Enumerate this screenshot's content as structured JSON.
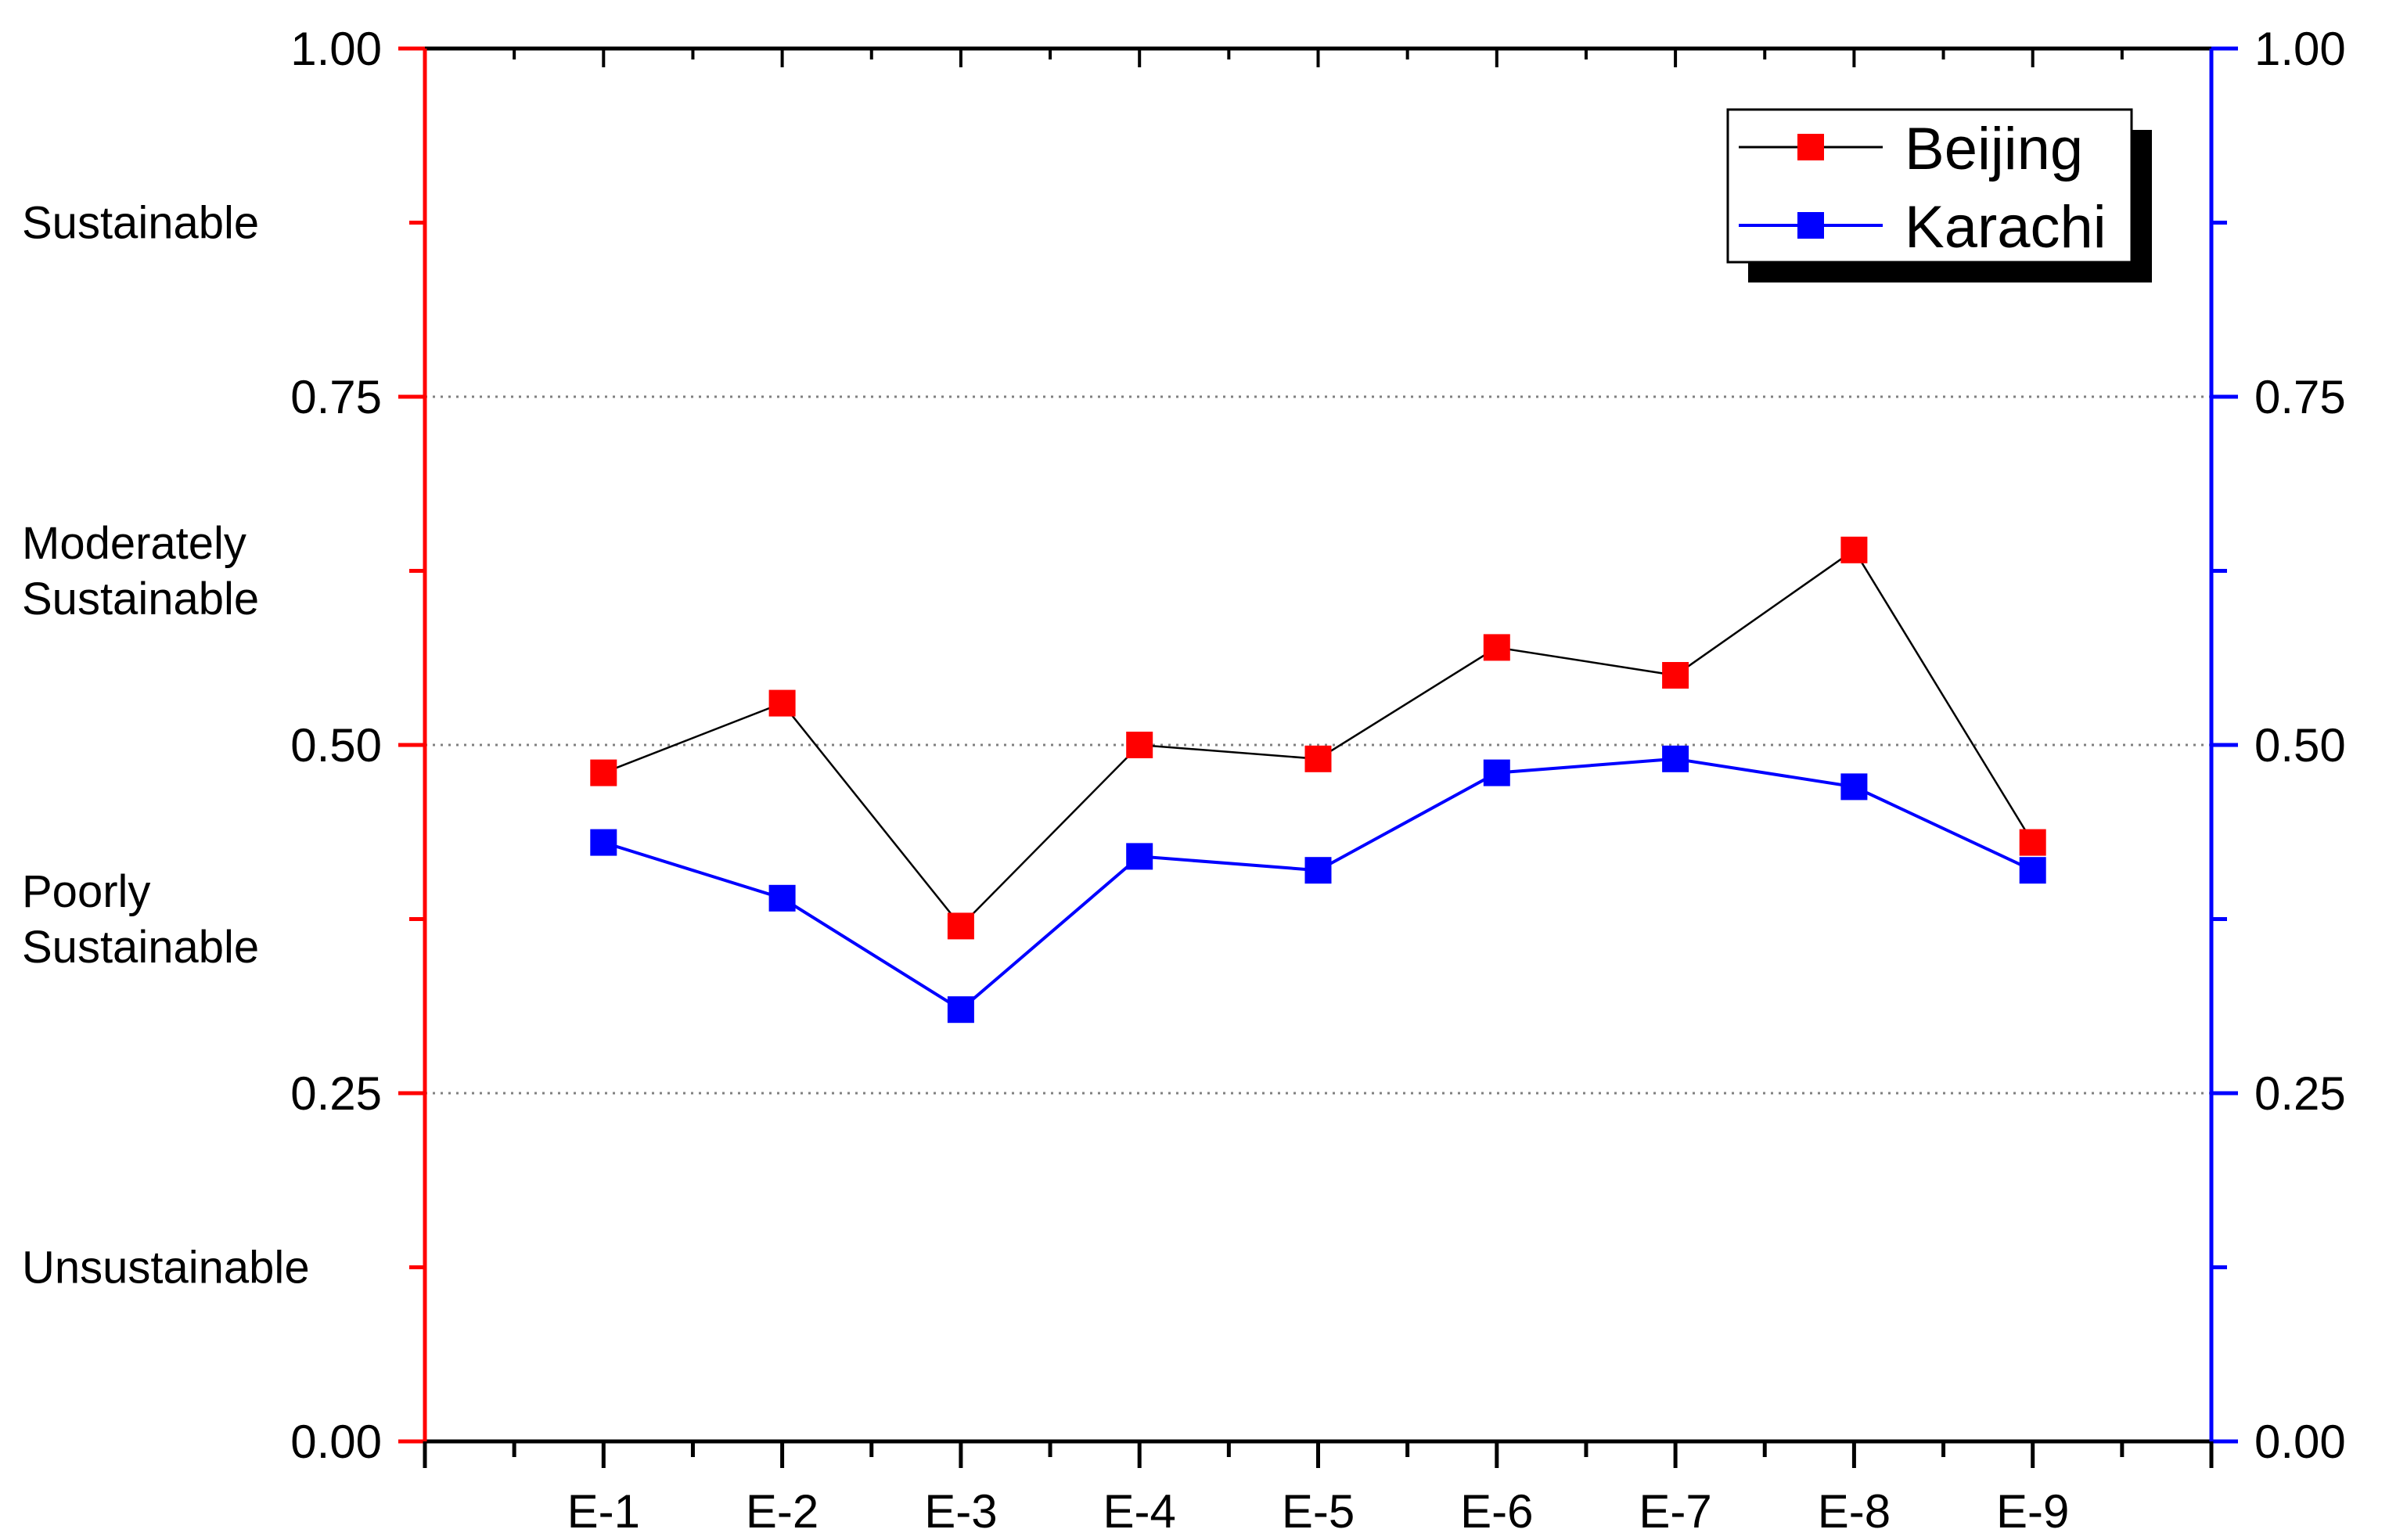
{
  "chart_data": {
    "type": "line",
    "categories": [
      "E-1",
      "E-2",
      "E-3",
      "E-4",
      "E-5",
      "E-6",
      "E-7",
      "E-8",
      "E-9"
    ],
    "series": [
      {
        "name": "Beijing",
        "values": [
          0.48,
          0.53,
          0.37,
          0.5,
          0.49,
          0.57,
          0.55,
          0.64,
          0.43
        ],
        "line_color": "#000000",
        "marker_color": "#ff0000"
      },
      {
        "name": "Karachi",
        "values": [
          0.43,
          0.39,
          0.31,
          0.42,
          0.41,
          0.48,
          0.49,
          0.47,
          0.41
        ],
        "line_color": "#0000ff",
        "marker_color": "#0000ff"
      }
    ],
    "ylim": [
      0,
      1
    ],
    "y_ticks": [
      "0.00",
      "0.25",
      "0.50",
      "0.75",
      "1.00"
    ],
    "y_tick_values": [
      0,
      0.25,
      0.5,
      0.75,
      1
    ],
    "gridlines_y": [
      0.25,
      0.5,
      0.75
    ],
    "left_axis_color": "#ff0000",
    "right_axis_color": "#0000ff",
    "zone_labels": [
      {
        "lines": [
          "Sustainable"
        ],
        "y_center": 0.875
      },
      {
        "lines": [
          "Moderately",
          "Sustainable"
        ],
        "y_center": 0.625
      },
      {
        "lines": [
          "Poorly",
          "Sustainable"
        ],
        "y_center": 0.375
      },
      {
        "lines": [
          "Unsustainable"
        ],
        "y_center": 0.125
      }
    ],
    "legend_position": "top-right",
    "grid": true
  }
}
